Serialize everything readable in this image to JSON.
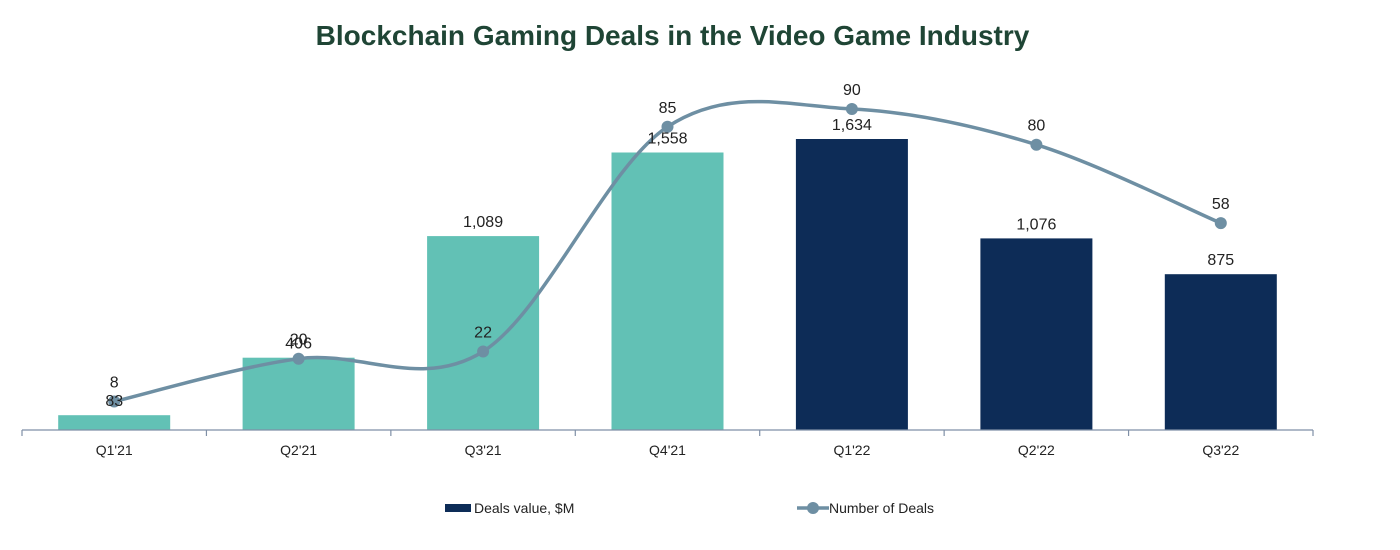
{
  "chart_data": {
    "type": "bar",
    "title": "Blockchain Gaming Deals in the Video Game Industry",
    "categories": [
      "Q1'21",
      "Q2'21",
      "Q3'21",
      "Q4'21",
      "Q1'22",
      "Q2'22",
      "Q3'22"
    ],
    "series": [
      {
        "name": "Deals value, $M",
        "type": "bar",
        "values": [
          83,
          406,
          1089,
          1558,
          1634,
          1076,
          875
        ],
        "value_labels": [
          "83",
          "406",
          "1,089",
          "1,558",
          "1,634",
          "1,076",
          "875"
        ],
        "colors": [
          "#62c1b5",
          "#62c1b5",
          "#62c1b5",
          "#62c1b5",
          "#0d2c57",
          "#0d2c57",
          "#0d2c57"
        ]
      },
      {
        "name": "Number of Deals",
        "type": "line",
        "smooth": true,
        "values": [
          8,
          20,
          22,
          85,
          90,
          80,
          58
        ],
        "value_labels": [
          "8",
          "20",
          "22",
          "85",
          "90",
          "80",
          "58"
        ],
        "color": "#6e8fa3"
      }
    ],
    "y_left_lim": [
      0,
      1650
    ],
    "y_right_lim": [
      0,
      100
    ],
    "grid": false,
    "legend_position": "bottom",
    "legend_color": "#0d2c57"
  }
}
